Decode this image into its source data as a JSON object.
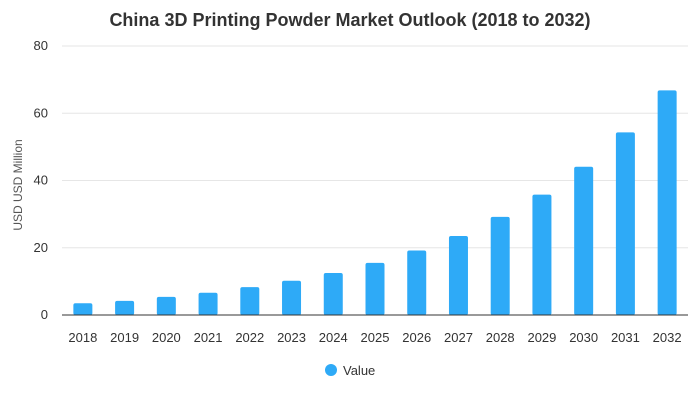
{
  "chart_data": {
    "type": "bar",
    "title": "China 3D Printing Powder Market Outlook (2018 to 2032)",
    "xlabel": "",
    "ylabel": "USD USD Million",
    "ylim": [
      0,
      80
    ],
    "yticks": [
      0,
      20,
      40,
      60,
      80
    ],
    "grid": true,
    "legend": "bottom-center",
    "categories": [
      "2018",
      "2019",
      "2020",
      "2021",
      "2022",
      "2023",
      "2024",
      "2025",
      "2026",
      "2027",
      "2028",
      "2029",
      "2030",
      "2031",
      "2032"
    ],
    "series": [
      {
        "name": "Value",
        "color": "#2eaaf7",
        "values": [
          3.5,
          4.2,
          5.4,
          6.6,
          8.3,
          10.2,
          12.5,
          15.5,
          19.2,
          23.5,
          29.2,
          35.8,
          44.1,
          54.3,
          66.8
        ]
      }
    ]
  }
}
